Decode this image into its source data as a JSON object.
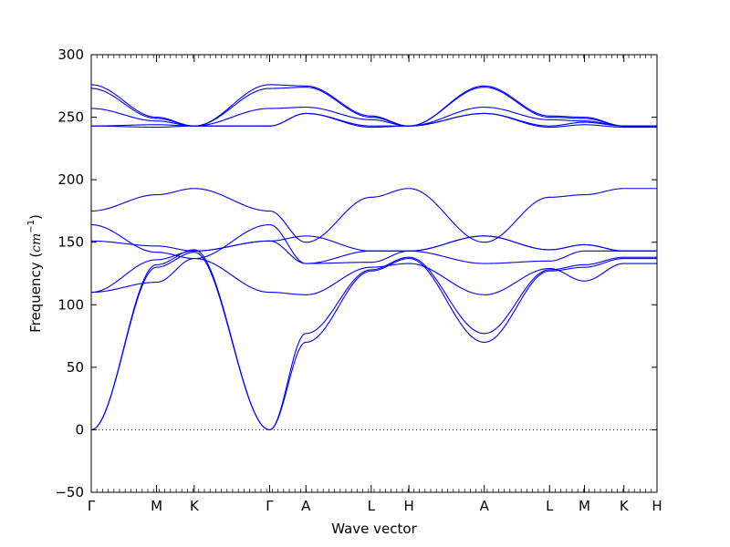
{
  "chart_data": {
    "type": "line",
    "xlabel": "Wave vector",
    "ylabel": {
      "text": "Frequency ",
      "open": "(",
      "unit": "cm",
      "exponent": "−1",
      "close": ")"
    },
    "ylim": [
      -50,
      300
    ],
    "yticks": [
      "−50",
      "0",
      "50",
      "100",
      "150",
      "200",
      "250",
      "300"
    ],
    "ytick_values": [
      -50,
      0,
      50,
      100,
      150,
      200,
      250,
      300
    ],
    "path_points": [
      "Γ",
      "M",
      "K",
      "Γ",
      "A",
      "L",
      "H",
      "A",
      "L",
      "M",
      "K",
      "H"
    ],
    "path_positions": [
      0,
      0.369,
      0.582,
      1.008,
      1.213,
      1.582,
      1.795,
      2.221,
      2.59,
      2.787,
      3.01,
      3.197
    ],
    "zero_line": true,
    "line_color": "#0000ff",
    "knots": {
      "x": [
        0,
        0.369,
        0.582,
        1.008,
        1.213,
        1.582,
        1.795,
        2.221,
        2.59,
        2.787,
        3.01,
        3.197
      ],
      "bands": [
        [
          0,
          130,
          142,
          0,
          70,
          127,
          137,
          70,
          127,
          130,
          137,
          137
        ],
        [
          0,
          132,
          144,
          0,
          77,
          128,
          138,
          77,
          128,
          132,
          138,
          138
        ],
        [
          110,
          118,
          137,
          110,
          108,
          130,
          133,
          108,
          129,
          119,
          133,
          133
        ],
        [
          110,
          136,
          143,
          151,
          133,
          134,
          143,
          133,
          135,
          143,
          143,
          143
        ],
        [
          151,
          147,
          143,
          151,
          155,
          143,
          143,
          155,
          144,
          148,
          143,
          143
        ],
        [
          164,
          142,
          137,
          164,
          133,
          143,
          143,
          155,
          144,
          148,
          143,
          143
        ],
        [
          175,
          188,
          193,
          175,
          150,
          186,
          193,
          150,
          186,
          188,
          193,
          193
        ],
        [
          243,
          242,
          243,
          243,
          253,
          242,
          243,
          253,
          242,
          244,
          242,
          242
        ],
        [
          243,
          244,
          243,
          243,
          253,
          243,
          243,
          253,
          243,
          246,
          243,
          243
        ],
        [
          257,
          247,
          243,
          257,
          258,
          248,
          243,
          258,
          248,
          247,
          243,
          243
        ],
        [
          273,
          249,
          243,
          273,
          274,
          250,
          243,
          274,
          250,
          249,
          243,
          243
        ],
        [
          276,
          250,
          243,
          276,
          275,
          251,
          243,
          275,
          251,
          250,
          243,
          243
        ]
      ]
    }
  }
}
